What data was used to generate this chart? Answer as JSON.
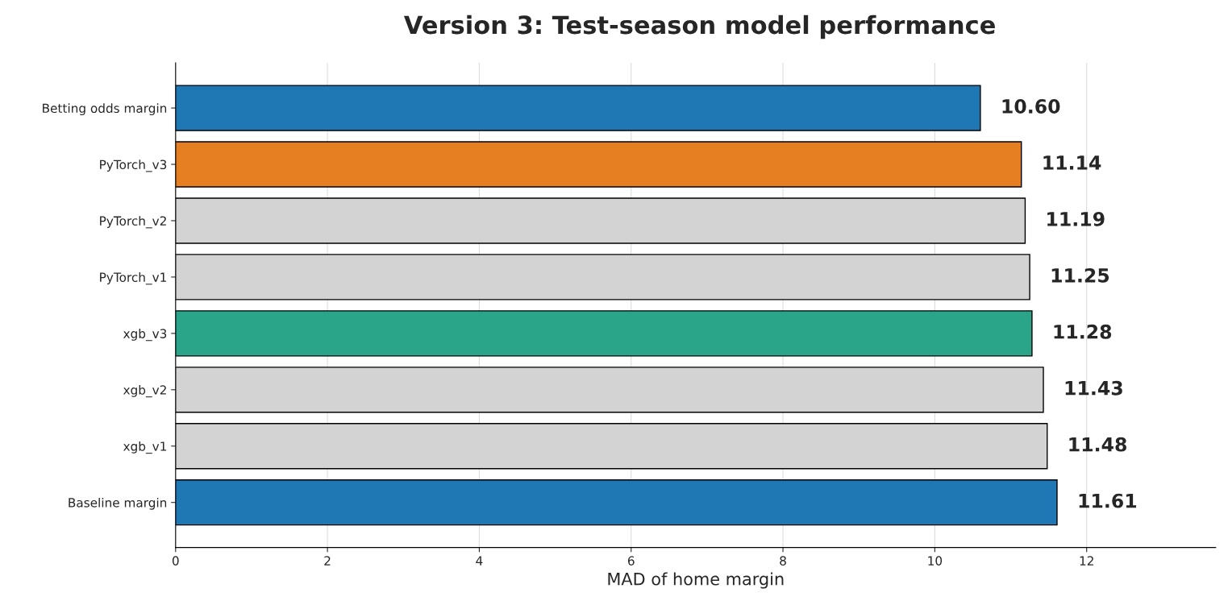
{
  "chart_data": {
    "type": "bar",
    "orientation": "horizontal",
    "title": "Version 3: Test-season model performance",
    "xlabel": "MAD of home margin",
    "categories": [
      "Betting odds margin",
      "PyTorch_v3",
      "PyTorch_v2",
      "PyTorch_v1",
      "xgb_v3",
      "xgb_v2",
      "xgb_v1",
      "Baseline margin"
    ],
    "values": [
      10.6,
      11.14,
      11.19,
      11.25,
      11.28,
      11.43,
      11.48,
      11.61
    ],
    "colors": [
      "#1f77b4",
      "#e67e22",
      "#d3d3d3",
      "#d3d3d3",
      "#2aa58a",
      "#d3d3d3",
      "#d3d3d3",
      "#1f77b4"
    ],
    "value_labels": [
      "10.60",
      "11.14",
      "11.19",
      "11.25",
      "11.28",
      "11.43",
      "11.48",
      "11.61"
    ],
    "xlim": [
      0,
      13.7
    ],
    "xticks": [
      0,
      2,
      4,
      6,
      8,
      10,
      12
    ],
    "grid": "x"
  }
}
